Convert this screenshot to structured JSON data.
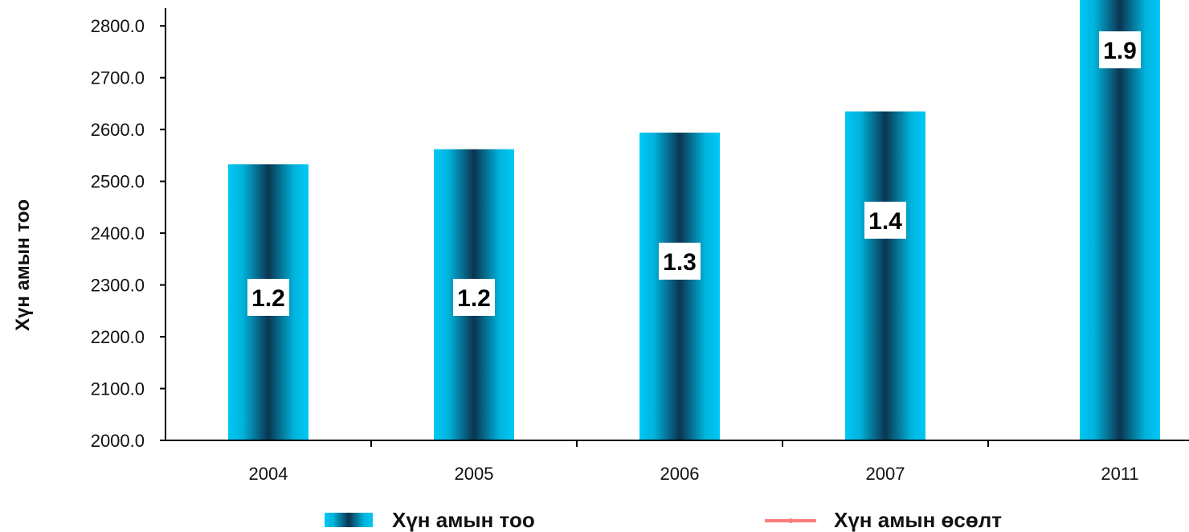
{
  "chart_data": {
    "type": "bar",
    "ylabel": "Хүн амын тоо",
    "ylim": [
      2000,
      2850
    ],
    "yticks": [
      "2000.0",
      "2100.0",
      "2200.0",
      "2300.0",
      "2400.0",
      "2500.0",
      "2600.0",
      "2700.0",
      "2800.0"
    ],
    "categories": [
      "2004",
      "2005",
      "2006",
      "2007",
      "2011"
    ],
    "series": [
      {
        "name": "Хүн амын тоо",
        "kind": "bar",
        "values": [
          2533,
          2562,
          2594,
          2635,
          2850
        ]
      },
      {
        "name": "Хүн амын өсөлт",
        "kind": "line",
        "values": [
          1.2,
          1.2,
          1.3,
          1.4,
          1.9
        ]
      }
    ],
    "data_labels": [
      "1.2",
      "1.2",
      "1.3",
      "1.4",
      "1.9"
    ],
    "legend_position": "bottom",
    "grid": false,
    "colors": {
      "bar_edge": "#00c8f5",
      "bar_center": "#0b3550",
      "line": "#ff7a7a",
      "axis": "#000000"
    }
  }
}
